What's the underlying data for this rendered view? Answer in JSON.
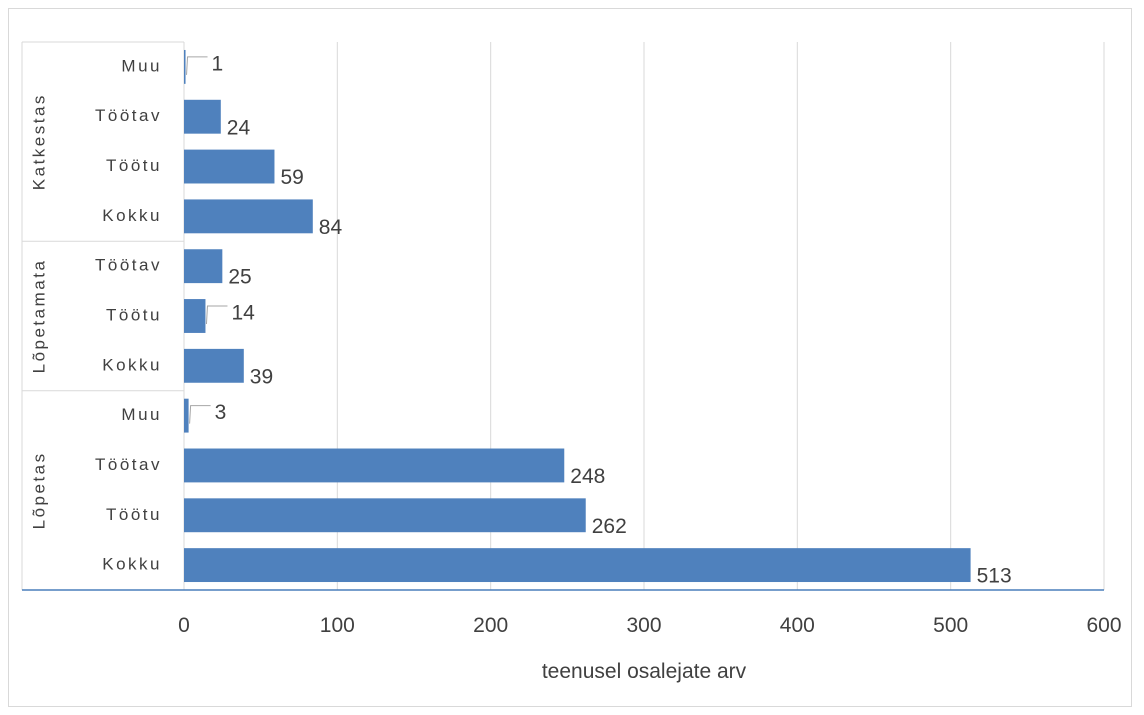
{
  "chart_data": {
    "type": "bar",
    "orientation": "horizontal",
    "groups": [
      {
        "name": "Katkestas",
        "categories": [
          "Muu",
          "Töötav",
          "Töötu",
          "Kokku"
        ],
        "values": [
          1,
          24,
          59,
          84
        ]
      },
      {
        "name": "Lõpetamata",
        "categories": [
          "Töötav",
          "Töötu",
          "Kokku"
        ],
        "values": [
          25,
          14,
          39
        ]
      },
      {
        "name": "Lõpetas",
        "categories": [
          "Muu",
          "Töötav",
          "Töötu",
          "Kokku"
        ],
        "values": [
          3,
          248,
          262,
          513
        ]
      }
    ],
    "xlabel": "teenusel osalejate arv",
    "xlim": [
      0,
      600
    ],
    "xticks": [
      0,
      100,
      200,
      300,
      400,
      500,
      600
    ],
    "grid": "vertical",
    "legend": "none",
    "bar_color": "#4f81bd",
    "grid_color": "#d9d9d9",
    "axis_color": "#4a7ebb"
  }
}
